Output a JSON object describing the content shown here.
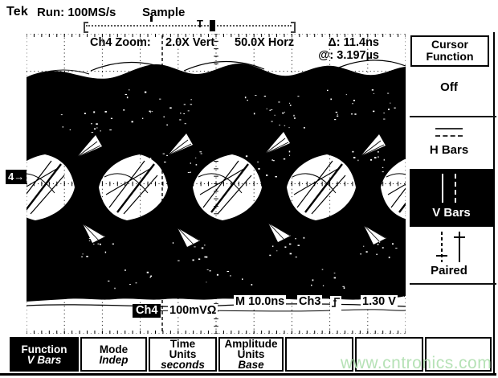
{
  "colors": {
    "screen_bg": "#ffffff",
    "ink": "#000000",
    "watermark_green": "#b6e2b6"
  },
  "top_bar": {
    "brand": "Tek",
    "run_status": "Run: 100MS/s",
    "acquisition_mode": "Sample",
    "trigger_marker_label": "T"
  },
  "zoom_header": {
    "title": "Ch4 Zoom:",
    "vert_factor": "2.0X Vert",
    "horz_factor": "50.0X Horz",
    "delta_label": "Δ:",
    "delta_value": "11.4ns",
    "at_label": "@:",
    "at_value": "3.197µs"
  },
  "channel_ref_marker": "4→",
  "cursor_menu": {
    "title_line1": "Cursor",
    "title_line2": "Function",
    "off_label": "Off",
    "h_bars_label": "H Bars",
    "v_bars_label": "V Bars",
    "paired_label": "Paired",
    "selected_item": "V Bars"
  },
  "readouts": {
    "channel_badge": "Ch4",
    "vertical_scale": "100mVΩ",
    "timebase": "M 10.0ns",
    "trigger_source": "Ch3",
    "trigger_slope_icon": "rising-edge",
    "trigger_level": "1.30 V"
  },
  "bottom_menu": {
    "items": [
      {
        "lines": [
          "Function"
        ],
        "value": "V Bars",
        "selected": true
      },
      {
        "lines": [
          "Mode"
        ],
        "value": "Indep",
        "selected": false
      },
      {
        "lines": [
          "Time",
          "Units"
        ],
        "value": "seconds",
        "selected": false
      },
      {
        "lines": [
          "Amplitude",
          "Units"
        ],
        "value": "Base",
        "selected": false
      }
    ]
  },
  "watermark": "www.cntronics.com"
}
